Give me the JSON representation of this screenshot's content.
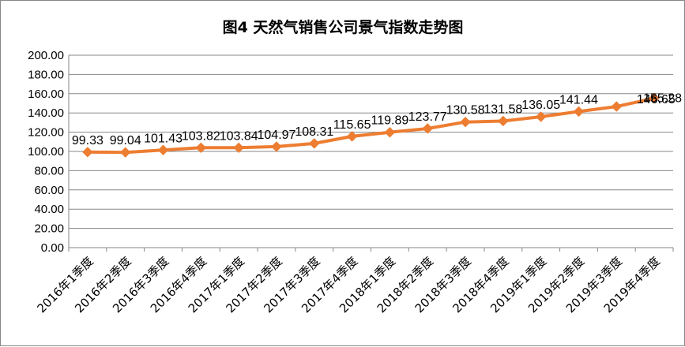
{
  "chart_data": {
    "type": "line",
    "title": "图4  天然气销售公司景气指数走势图",
    "categories": [
      "2016年1季度",
      "2016年2季度",
      "2016年3季度",
      "2016年4季度",
      "2017年1季度",
      "2017年2季度",
      "2017年3季度",
      "2017年4季度",
      "2018年1季度",
      "2018年2季度",
      "2018年3季度",
      "2018年4季度",
      "2019年1季度",
      "2019年2季度",
      "2019年3季度",
      "2019年4季度"
    ],
    "series": [
      {
        "values": [
          99.33,
          99.04,
          101.43,
          103.82,
          103.84,
          104.97,
          108.31,
          115.65,
          119.89,
          123.77,
          130.58,
          131.58,
          136.05,
          141.44,
          146.65,
          155.28
        ],
        "labels": [
          "99.33",
          "99.04",
          "101.43",
          "103.82",
          "103.84",
          "104.97",
          "108.31",
          "115.65",
          "119.89",
          "123.77",
          "130.58",
          "131.58",
          "136.05",
          "141.44",
          "146.65",
          "155.28"
        ]
      }
    ],
    "ylim": [
      0,
      200
    ],
    "yticks": [
      "0.00",
      "20.00",
      "40.00",
      "60.00",
      "80.00",
      "100.00",
      "120.00",
      "140.00",
      "160.00",
      "180.00",
      "200.00"
    ],
    "xlabel": "",
    "ylabel": "",
    "grid": "horizontal",
    "legend": "none",
    "line_color": "#ED7D31",
    "marker": "diamond"
  }
}
